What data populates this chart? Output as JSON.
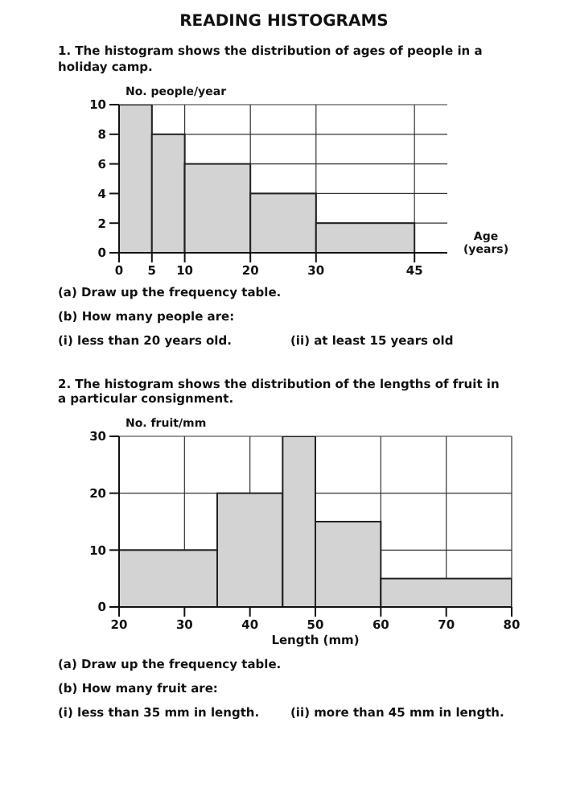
{
  "chart_data": [
    {
      "type": "histogram",
      "title": "READING HISTOGRAMS",
      "subtitle": "1. The histogram shows the distribution of ages of people in a holiday camp.",
      "xlabel": "Age (years)",
      "ylabel": "No. people/year",
      "bins": [
        0,
        5,
        10,
        20,
        30,
        45
      ],
      "values": [
        10,
        8,
        6,
        4,
        2
      ],
      "color": "#d3d3d3",
      "xlim": [
        0,
        50
      ],
      "xticks": [
        0,
        5,
        10,
        20,
        30,
        45
      ],
      "ylim": [
        0,
        10
      ],
      "yticks": [
        0,
        2,
        4,
        6,
        8,
        10
      ],
      "grid": true,
      "legend": false,
      "annotations": [
        "(a) Draw up the frequency table.",
        "(b) How many people are:",
        "(i) less than 20 years old.",
        "(ii) at least 15 years old"
      ]
    },
    {
      "type": "histogram",
      "title": "2. The histogram shows the distribution of the lengths of fruit in a particular consignment.",
      "xlabel": "Length (mm)",
      "ylabel": "No. fruit/mm",
      "bins": [
        20,
        35,
        45,
        50,
        60,
        80
      ],
      "values": [
        10,
        20,
        30,
        15,
        5
      ],
      "color": "#d3d3d3",
      "xlim": [
        20,
        80
      ],
      "xticks": [
        20,
        30,
        40,
        50,
        60,
        70,
        80
      ],
      "ylim": [
        0,
        30
      ],
      "yticks": [
        0,
        10,
        20,
        30
      ],
      "grid": true,
      "legend": false,
      "annotations": [
        "(a) Draw up the frequency table.",
        "(b) How many fruit are:",
        "(i) less than 35 mm in length.",
        "(ii) more than 45 mm in length."
      ]
    }
  ]
}
